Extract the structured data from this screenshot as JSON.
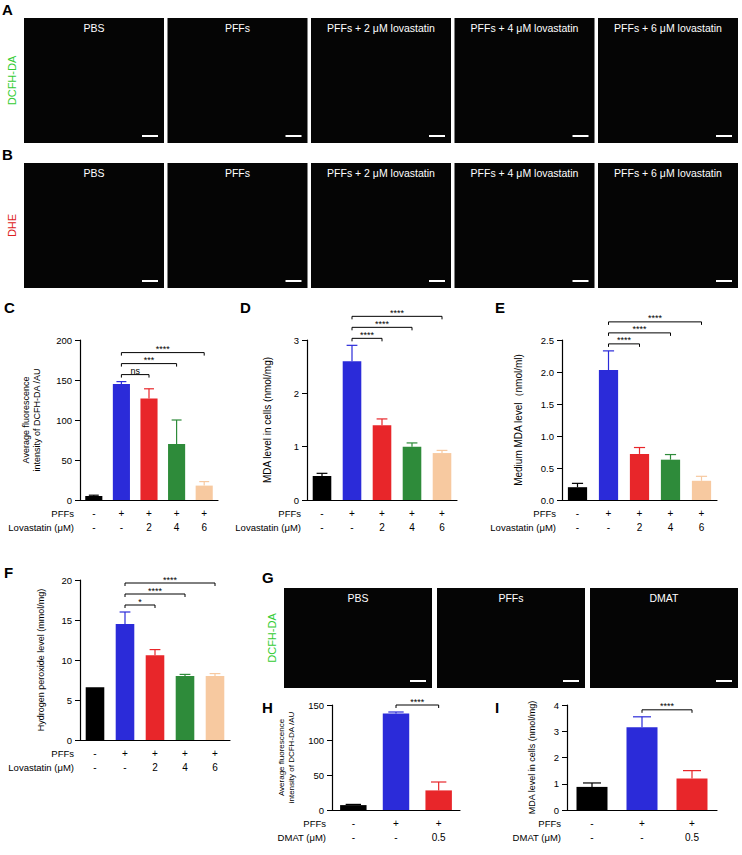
{
  "image_panels": [
    {
      "panel": "A",
      "channel": "DCFH-DA",
      "color": "#33cc33",
      "titles": [
        "PBS",
        "PFFs",
        "PFFs + 2 μM lovastatin",
        "PFFs + 4 μM lovastatin",
        "PFFs + 6 μM lovastatin"
      ]
    },
    {
      "panel": "B",
      "channel": "DHE",
      "color": "#dd2222",
      "titles": [
        "PBS",
        "PFFs",
        "PFFs + 2 μM lovastatin",
        "PFFs + 4 μM lovastatin",
        "PFFs + 6 μM lovastatin"
      ]
    },
    {
      "panel": "G",
      "channel": "DCFH-DA",
      "color": "#33cc33",
      "titles": [
        "PBS",
        "PFFs",
        "DMAT"
      ]
    }
  ],
  "chart_data": [
    {
      "panel": "C",
      "type": "bar",
      "y_label": "Average fluorescence\nintensity of DCFH-DA /AU",
      "x_rows": [
        {
          "label": "PFFs",
          "values": [
            "-",
            "+",
            "+",
            "+",
            "+"
          ]
        },
        {
          "label": "Lovastatin (μM)",
          "values": [
            "-",
            "-",
            "2",
            "4",
            "6"
          ]
        }
      ],
      "values": [
        5,
        145,
        127,
        70,
        18
      ],
      "errors": [
        1,
        3,
        12,
        30,
        5
      ],
      "colors": [
        "#000000",
        "#2b2bd9",
        "#e8262a",
        "#2e8b3a",
        "#f7c9a0"
      ],
      "ylim": [
        0,
        200
      ],
      "yticks": [
        0,
        50,
        100,
        150,
        200
      ],
      "grid": false,
      "significance": [
        {
          "from": 1,
          "to": 2,
          "label": "ns"
        },
        {
          "from": 1,
          "to": 3,
          "label": "***"
        },
        {
          "from": 1,
          "to": 4,
          "label": "****"
        }
      ]
    },
    {
      "panel": "D",
      "type": "bar",
      "y_label": "MDA level in cells (nmol/mg)",
      "x_rows": [
        {
          "label": "PFFs",
          "values": [
            "-",
            "+",
            "+",
            "+",
            "+"
          ]
        },
        {
          "label": "Lovastatin (μM)",
          "values": [
            "-",
            "-",
            "2",
            "4",
            "6"
          ]
        }
      ],
      "values": [
        0.45,
        2.6,
        1.4,
        1.0,
        0.88
      ],
      "errors": [
        0.05,
        0.3,
        0.12,
        0.07,
        0.05
      ],
      "colors": [
        "#000000",
        "#2b2bd9",
        "#e8262a",
        "#2e8b3a",
        "#f7c9a0"
      ],
      "ylim": [
        0,
        3
      ],
      "yticks": [
        0,
        1,
        2,
        3
      ],
      "grid": false,
      "significance": [
        {
          "from": 1,
          "to": 2,
          "label": "****"
        },
        {
          "from": 1,
          "to": 3,
          "label": "****"
        },
        {
          "from": 1,
          "to": 4,
          "label": "****"
        }
      ]
    },
    {
      "panel": "E",
      "type": "bar",
      "y_label": "Medium MDA level（nmol/ml)",
      "x_rows": [
        {
          "label": "PFFs",
          "values": [
            "-",
            "+",
            "+",
            "+",
            "+"
          ]
        },
        {
          "label": "Lovastatin (μM)",
          "values": [
            "-",
            "-",
            "2",
            "4",
            "6"
          ]
        }
      ],
      "values": [
        0.2,
        2.03,
        0.72,
        0.63,
        0.3
      ],
      "errors": [
        0.06,
        0.3,
        0.1,
        0.08,
        0.07
      ],
      "colors": [
        "#000000",
        "#2b2bd9",
        "#e8262a",
        "#2e8b3a",
        "#f7c9a0"
      ],
      "ylim": [
        0,
        2.5
      ],
      "yticks": [
        {
          "value": 0,
          "label": "0.0"
        },
        0.5,
        {
          "value": 1,
          "label": "1.0"
        },
        1.5,
        {
          "value": 2,
          "label": "2.0"
        },
        2.5
      ],
      "grid": false,
      "significance": [
        {
          "from": 1,
          "to": 2,
          "label": "****"
        },
        {
          "from": 1,
          "to": 3,
          "label": "****"
        },
        {
          "from": 1,
          "to": 4,
          "label": "****"
        }
      ]
    },
    {
      "panel": "F",
      "type": "bar",
      "y_label": "Hydrogen peroxide level (mmol/mg)",
      "x_rows": [
        {
          "label": "PFFs",
          "values": [
            "-",
            "+",
            "+",
            "+",
            "+"
          ]
        },
        {
          "label": "Lovastatin (μM)",
          "values": [
            "-",
            "-",
            "2",
            "4",
            "6"
          ]
        }
      ],
      "values": [
        6.6,
        14.5,
        10.6,
        8.0,
        8.0
      ],
      "errors": [
        null,
        1.5,
        0.7,
        0.2,
        0.3
      ],
      "colors": [
        "#000000",
        "#2b2bd9",
        "#e8262a",
        "#2e8b3a",
        "#f7c9a0"
      ],
      "ylim": [
        0,
        20
      ],
      "yticks": [
        0,
        5,
        10,
        15,
        20
      ],
      "grid": false,
      "significance": [
        {
          "from": 1,
          "to": 2,
          "label": "*"
        },
        {
          "from": 1,
          "to": 3,
          "label": "****"
        },
        {
          "from": 1,
          "to": 4,
          "label": "****"
        }
      ]
    },
    {
      "panel": "H",
      "type": "bar",
      "y_label": "Average fluorescence\nintensity of DCFH-DA /AU",
      "x_rows": [
        {
          "label": "PFFs",
          "values": [
            "-",
            "+",
            "+"
          ]
        },
        {
          "label": "DMAT (μM)",
          "values": [
            "-",
            "-",
            "0.5"
          ]
        }
      ],
      "values": [
        7,
        138,
        28
      ],
      "errors": [
        1,
        2,
        12
      ],
      "colors": [
        "#000000",
        "#2b2bd9",
        "#e8262a"
      ],
      "ylim": [
        0,
        150
      ],
      "yticks": [
        0,
        50,
        100,
        150
      ],
      "grid": false,
      "significance": [
        {
          "from": 1,
          "to": 2,
          "label": "****"
        }
      ]
    },
    {
      "panel": "I",
      "type": "bar",
      "y_label": "MDA level in cells (nmol/mg)",
      "x_rows": [
        {
          "label": "PFFs",
          "values": [
            "-",
            "+",
            "+"
          ]
        },
        {
          "label": "DMAT (μM)",
          "values": [
            "-",
            "-",
            "0.5"
          ]
        }
      ],
      "values": [
        0.88,
        3.15,
        1.2
      ],
      "errors": [
        0.15,
        0.4,
        0.3
      ],
      "colors": [
        "#000000",
        "#2b2bd9",
        "#e8262a"
      ],
      "ylim": [
        0,
        4
      ],
      "yticks": [
        0,
        1,
        2,
        3,
        4
      ],
      "grid": false,
      "significance": [
        {
          "from": 1,
          "to": 2,
          "label": "****"
        }
      ]
    }
  ]
}
